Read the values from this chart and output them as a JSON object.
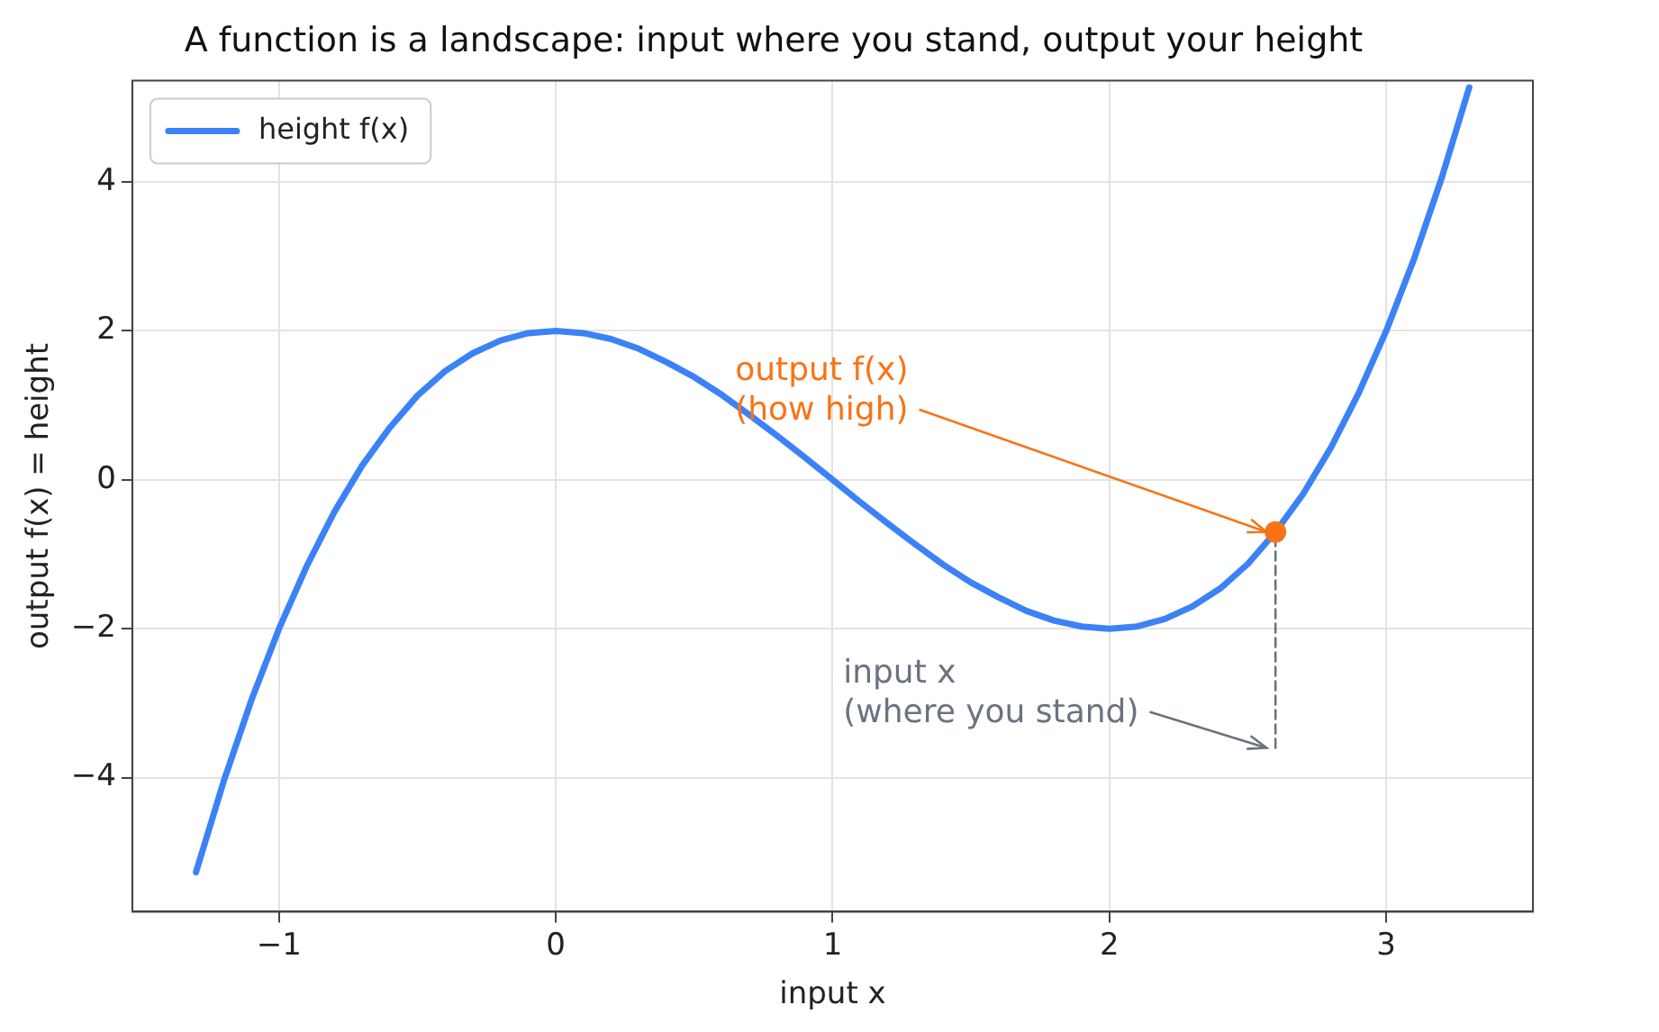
{
  "chart_data": {
    "type": "line",
    "title": "A function is a landscape: input where you stand, output your height",
    "xlabel": "input x",
    "ylabel": "output f(x) = height",
    "xlim": [
      -1.53,
      3.53
    ],
    "xticks": [
      -1,
      0,
      1,
      2,
      3
    ],
    "ylim": [
      -5.8,
      5.36
    ],
    "yticks": [
      -4,
      -2,
      0,
      2,
      4
    ],
    "grid": true,
    "legend": "top left",
    "marker": "none",
    "line_style": "solid",
    "series": [
      {
        "name": "height f(x)",
        "color": "#3b82f6",
        "x": [
          -1.3,
          -1.2,
          -1.1,
          -1.0,
          -0.9,
          -0.8,
          -0.7,
          -0.6,
          -0.5,
          -0.4,
          -0.3,
          -0.2,
          -0.1,
          0,
          0.1,
          0.2,
          0.3,
          0.4,
          0.5,
          0.6,
          0.7,
          0.8,
          0.9,
          1.0,
          1.1,
          1.2,
          1.3,
          1.4,
          1.5,
          1.6,
          1.7,
          1.8,
          1.9,
          2.0,
          2.1,
          2.2,
          2.3,
          2.4,
          2.5,
          2.6,
          2.7,
          2.8,
          2.9,
          3.0,
          3.1,
          3.2,
          3.3
        ],
        "values": [
          -5.27,
          -4.05,
          -2.96,
          -2,
          -1.16,
          -0.43,
          0.19,
          0.7,
          1.13,
          1.46,
          1.7,
          1.87,
          1.97,
          2,
          1.97,
          1.89,
          1.76,
          1.58,
          1.38,
          1.14,
          0.87,
          0.59,
          0.3,
          0,
          -0.3,
          -0.59,
          -0.87,
          -1.14,
          -1.38,
          -1.58,
          -1.76,
          -1.89,
          -1.97,
          -2,
          -1.97,
          -1.87,
          -1.7,
          -1.46,
          -1.13,
          -0.7,
          -0.19,
          0.43,
          1.16,
          2,
          2.96,
          4.05,
          5.27
        ]
      },
      {
        "type": "line",
        "color": "#6b7280",
        "line_style": "dashed",
        "x": [
          2.6,
          2.6
        ],
        "values": [
          -3.6,
          -0.7
        ]
      },
      {
        "type": "scatter",
        "color": "#f97316",
        "marker": "circle",
        "x": [
          2.6
        ],
        "values": [
          -0.7
        ]
      }
    ],
    "annotations": [
      {
        "text": "output f(x)\n(how high)",
        "x": 2.6,
        "y": -0.7
      },
      {
        "text": "input x\n(where you stand)",
        "x": 2.6,
        "y": -3.6
      }
    ]
  }
}
